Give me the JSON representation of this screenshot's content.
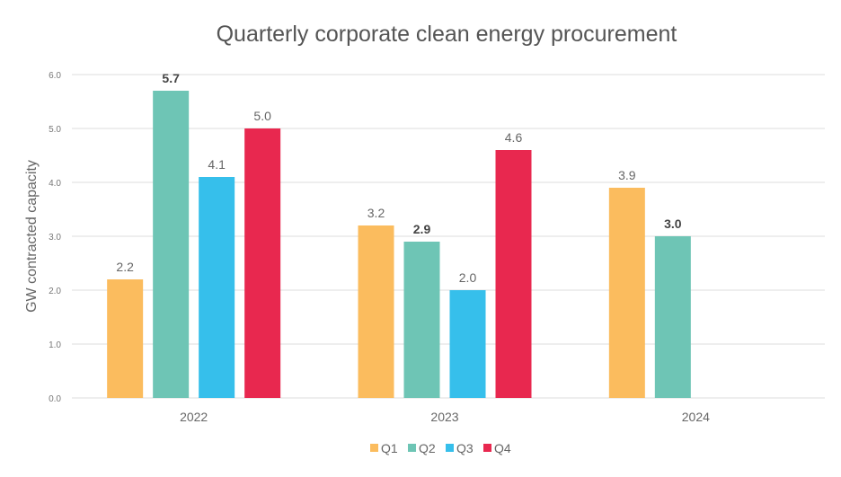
{
  "chart_data": {
    "type": "bar",
    "title": "Quarterly corporate clean energy procurement",
    "xlabel": "",
    "ylabel": "GW contracted capacity",
    "ylim": [
      0,
      6
    ],
    "yticks": [
      "0.0",
      "1.0",
      "2.0",
      "3.0",
      "4.0",
      "5.0",
      "6.0"
    ],
    "grid": true,
    "legend_position": "bottom-center",
    "categories": [
      "2022",
      "2023",
      "2024"
    ],
    "series": [
      {
        "name": "Q1",
        "color": "#FBBC5E",
        "values": [
          2.2,
          3.2,
          3.9
        ],
        "labels": [
          "2.2",
          "3.2",
          "3.9"
        ],
        "bold": [
          false,
          false,
          false
        ]
      },
      {
        "name": "Q2",
        "color": "#6EC5B5",
        "values": [
          5.7,
          2.9,
          3.0
        ],
        "labels": [
          "5.7",
          "2.9",
          "3.0"
        ],
        "bold": [
          true,
          true,
          true
        ]
      },
      {
        "name": "Q3",
        "color": "#36BFEB",
        "values": [
          4.1,
          2.0,
          null
        ],
        "labels": [
          "4.1",
          "2.0",
          null
        ],
        "bold": [
          false,
          false,
          false
        ]
      },
      {
        "name": "Q4",
        "color": "#E8284F",
        "values": [
          5.0,
          4.6,
          null
        ],
        "labels": [
          "5.0",
          "4.6",
          null
        ],
        "bold": [
          false,
          false,
          false
        ]
      }
    ]
  }
}
